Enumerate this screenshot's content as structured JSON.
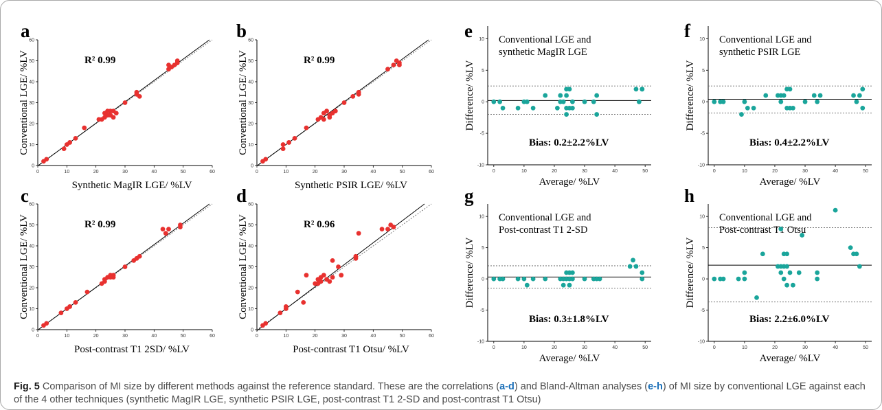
{
  "caption": {
    "label": "Fig. 5",
    "text_1": " Comparison of MI size by different methods against the reference standard. These are the correlations (",
    "ref_ad": "a-d",
    "text_2": ") and Bland-Altman analyses (",
    "ref_eh": "e-h",
    "text_3": ") of MI size by conventional LGE against each of the 4 other techniques (synthetic MagIR LGE, synthetic PSIR LGE, post-contrast T1 2-SD and post-contrast T1 Otsu)"
  },
  "colors": {
    "point_red": "#e8312f",
    "point_teal": "#1aa59b",
    "axis": "#000000"
  },
  "chart_data": [
    {
      "panel": "a",
      "type": "scatter",
      "xlabel": "Synthetic MagIR LGE/ %LV",
      "ylabel": "Conventional LGE/ %LV",
      "xlim": [
        0,
        60
      ],
      "ylim": [
        0,
        60
      ],
      "xticks": [
        0,
        10,
        20,
        30,
        40,
        50,
        60
      ],
      "yticks": [
        0,
        10,
        20,
        30,
        40,
        50,
        60
      ],
      "annotation": "R² 0.99",
      "fit_line": {
        "slope": 1.02,
        "intercept": -0.2
      },
      "identity_line": true,
      "points": [
        [
          2,
          2
        ],
        [
          3,
          3
        ],
        [
          9,
          8
        ],
        [
          10,
          10
        ],
        [
          11,
          11
        ],
        [
          13,
          13
        ],
        [
          16,
          18
        ],
        [
          21,
          22
        ],
        [
          22,
          22
        ],
        [
          23,
          23
        ],
        [
          23,
          25
        ],
        [
          24,
          26
        ],
        [
          24,
          24
        ],
        [
          25,
          24
        ],
        [
          25,
          26
        ],
        [
          26,
          26
        ],
        [
          26,
          23
        ],
        [
          27,
          25
        ],
        [
          30,
          30
        ],
        [
          34,
          34
        ],
        [
          34,
          35
        ],
        [
          35,
          33
        ],
        [
          45,
          46
        ],
        [
          45,
          48
        ],
        [
          46,
          47
        ],
        [
          47,
          48
        ],
        [
          48,
          49
        ],
        [
          48,
          50
        ]
      ]
    },
    {
      "panel": "b",
      "type": "scatter",
      "xlabel": "Synthetic PSIR LGE/ %LV",
      "ylabel": "Conventional LGE/ %LV",
      "xlim": [
        0,
        60
      ],
      "ylim": [
        0,
        60
      ],
      "xticks": [
        0,
        10,
        20,
        30,
        40,
        50,
        60
      ],
      "yticks": [
        0,
        10,
        20,
        30,
        40,
        50,
        60
      ],
      "annotation": "R² 0.99",
      "fit_line": {
        "slope": 1.02,
        "intercept": -0.2
      },
      "identity_line": true,
      "points": [
        [
          2,
          2
        ],
        [
          3,
          3
        ],
        [
          9,
          10
        ],
        [
          9,
          8
        ],
        [
          11,
          11
        ],
        [
          13,
          13
        ],
        [
          17,
          18
        ],
        [
          21,
          22
        ],
        [
          22,
          23
        ],
        [
          23,
          25
        ],
        [
          23,
          22
        ],
        [
          24,
          26
        ],
        [
          25,
          24
        ],
        [
          25,
          23
        ],
        [
          26,
          25
        ],
        [
          27,
          26
        ],
        [
          30,
          30
        ],
        [
          33,
          33
        ],
        [
          35,
          34
        ],
        [
          35,
          35
        ],
        [
          45,
          46
        ],
        [
          47,
          48
        ],
        [
          48,
          50
        ],
        [
          49,
          48
        ],
        [
          49,
          49
        ]
      ]
    },
    {
      "panel": "c",
      "type": "scatter",
      "xlabel": "Post-contrast T1 2SD/ %LV",
      "ylabel": "Conventional LGE/ %LV",
      "xlim": [
        0,
        60
      ],
      "ylim": [
        0,
        60
      ],
      "xticks": [
        0,
        10,
        20,
        30,
        40,
        50,
        60
      ],
      "yticks": [
        0,
        10,
        20,
        30,
        40,
        50,
        60
      ],
      "annotation": "R² 0.99",
      "fit_line": {
        "slope": 1.02,
        "intercept": -0.2
      },
      "identity_line": true,
      "points": [
        [
          2,
          2
        ],
        [
          3,
          3
        ],
        [
          8,
          8
        ],
        [
          10,
          10
        ],
        [
          11,
          11
        ],
        [
          13,
          13
        ],
        [
          17,
          18
        ],
        [
          22,
          22
        ],
        [
          23,
          23
        ],
        [
          23,
          24
        ],
        [
          24,
          25
        ],
        [
          25,
          26
        ],
        [
          25,
          25
        ],
        [
          26,
          26
        ],
        [
          26,
          25
        ],
        [
          30,
          30
        ],
        [
          33,
          33
        ],
        [
          34,
          34
        ],
        [
          35,
          35
        ],
        [
          43,
          48
        ],
        [
          44,
          46
        ],
        [
          45,
          48
        ],
        [
          49,
          49
        ],
        [
          49,
          50
        ]
      ]
    },
    {
      "panel": "d",
      "type": "scatter",
      "xlabel": "Post-contrast T1 Otsu/ %LV",
      "ylabel": "Conventional LGE/ %LV",
      "xlim": [
        0,
        60
      ],
      "ylim": [
        0,
        60
      ],
      "xticks": [
        0,
        10,
        20,
        30,
        40,
        50,
        60
      ],
      "yticks": [
        0,
        10,
        20,
        30,
        40,
        50,
        60
      ],
      "annotation": "R² 0.96",
      "fit_line": {
        "slope": 1.05,
        "intercept": -0.5
      },
      "identity_line": true,
      "points": [
        [
          2,
          2
        ],
        [
          3,
          3
        ],
        [
          8,
          8
        ],
        [
          10,
          10
        ],
        [
          10,
          11
        ],
        [
          14,
          18
        ],
        [
          16,
          13
        ],
        [
          17,
          26
        ],
        [
          20,
          22
        ],
        [
          21,
          24
        ],
        [
          21,
          22
        ],
        [
          22,
          25
        ],
        [
          22,
          23
        ],
        [
          23,
          26
        ],
        [
          24,
          24
        ],
        [
          25,
          23
        ],
        [
          26,
          33
        ],
        [
          26,
          25
        ],
        [
          28,
          30
        ],
        [
          29,
          26
        ],
        [
          34,
          34
        ],
        [
          34,
          35
        ],
        [
          35,
          46
        ],
        [
          43,
          48
        ],
        [
          45,
          48
        ],
        [
          46,
          50
        ],
        [
          47,
          49
        ]
      ]
    },
    {
      "panel": "e",
      "type": "scatter",
      "title": [
        "Conventional LGE and",
        "synthetic MagIR LGE"
      ],
      "xlabel": "Average/ %LV",
      "ylabel": "Difference/ %LV",
      "xlim": [
        -2,
        52
      ],
      "ylim": [
        -10,
        12
      ],
      "xticks": [
        0,
        10,
        20,
        30,
        40,
        50
      ],
      "yticks": [
        -10,
        -5,
        0,
        5,
        10
      ],
      "annotation": "Bias: 0.2±2.2%LV",
      "mean_line": 0.2,
      "loa": [
        -2.0,
        2.5
      ],
      "points": [
        [
          0,
          0
        ],
        [
          2,
          0
        ],
        [
          3,
          -1
        ],
        [
          8,
          -1
        ],
        [
          10,
          0
        ],
        [
          11,
          0
        ],
        [
          13,
          -1
        ],
        [
          17,
          1
        ],
        [
          21,
          -1
        ],
        [
          22,
          0
        ],
        [
          22,
          1
        ],
        [
          23,
          0
        ],
        [
          24,
          1
        ],
        [
          24,
          -1
        ],
        [
          24,
          2
        ],
        [
          24,
          -2
        ],
        [
          25,
          2
        ],
        [
          25,
          -1
        ],
        [
          26,
          0
        ],
        [
          26,
          -1
        ],
        [
          30,
          0
        ],
        [
          33,
          0
        ],
        [
          34,
          -2
        ],
        [
          34,
          1
        ],
        [
          47,
          2
        ],
        [
          48,
          0
        ],
        [
          49,
          2
        ],
        [
          49,
          2
        ]
      ]
    },
    {
      "panel": "f",
      "type": "scatter",
      "title": [
        "Conventional LGE and",
        "synthetic PSIR LGE"
      ],
      "xlabel": "Average/ %LV",
      "ylabel": "Difference/ %LV",
      "xlim": [
        -2,
        52
      ],
      "ylim": [
        -10,
        12
      ],
      "xticks": [
        0,
        10,
        20,
        30,
        40,
        50
      ],
      "yticks": [
        -10,
        -5,
        0,
        5,
        10
      ],
      "annotation": "Bias: 0.4±2.2%LV",
      "mean_line": 0.4,
      "loa": [
        -1.8,
        2.5
      ],
      "points": [
        [
          0,
          0
        ],
        [
          2,
          0
        ],
        [
          3,
          0
        ],
        [
          9,
          -2
        ],
        [
          10,
          0
        ],
        [
          11,
          -1
        ],
        [
          13,
          -1
        ],
        [
          17,
          1
        ],
        [
          21,
          1
        ],
        [
          22,
          0
        ],
        [
          22,
          1
        ],
        [
          23,
          1
        ],
        [
          24,
          -1
        ],
        [
          24,
          2
        ],
        [
          25,
          2
        ],
        [
          25,
          -1
        ],
        [
          26,
          -1
        ],
        [
          30,
          0
        ],
        [
          33,
          1
        ],
        [
          34,
          0
        ],
        [
          35,
          1
        ],
        [
          46,
          1
        ],
        [
          47,
          0
        ],
        [
          48,
          1
        ],
        [
          49,
          -1
        ],
        [
          49,
          2
        ]
      ]
    },
    {
      "panel": "g",
      "type": "scatter",
      "title": [
        "Conventional LGE and",
        "Post-contrast T1 2-SD"
      ],
      "xlabel": "Average/ %LV",
      "ylabel": "Difference/ %LV",
      "xlim": [
        -2,
        52
      ],
      "ylim": [
        -10,
        12
      ],
      "xticks": [
        0,
        10,
        20,
        30,
        40,
        50
      ],
      "yticks": [
        -10,
        -5,
        0,
        5,
        10
      ],
      "annotation": "Bias: 0.3±1.8%LV",
      "mean_line": 0.3,
      "loa": [
        -1.5,
        2.1
      ],
      "points": [
        [
          0,
          0
        ],
        [
          2,
          0
        ],
        [
          3,
          0
        ],
        [
          8,
          0
        ],
        [
          10,
          0
        ],
        [
          11,
          -1
        ],
        [
          13,
          0
        ],
        [
          17,
          0
        ],
        [
          22,
          0
        ],
        [
          23,
          0
        ],
        [
          23,
          -1
        ],
        [
          24,
          1
        ],
        [
          24,
          0
        ],
        [
          25,
          1
        ],
        [
          25,
          0
        ],
        [
          25,
          -1
        ],
        [
          26,
          0
        ],
        [
          26,
          1
        ],
        [
          30,
          0
        ],
        [
          33,
          0
        ],
        [
          34,
          0
        ],
        [
          35,
          0
        ],
        [
          45,
          2
        ],
        [
          46,
          3
        ],
        [
          47,
          2
        ],
        [
          49,
          0
        ],
        [
          49,
          1
        ]
      ]
    },
    {
      "panel": "h",
      "type": "scatter",
      "title": [
        "Conventional LGE and",
        "Post-contrast T1 Otsu"
      ],
      "xlabel": "Average/ %LV",
      "ylabel": "Difference/ %LV",
      "xlim": [
        -2,
        52
      ],
      "ylim": [
        -10,
        12
      ],
      "xticks": [
        0,
        10,
        20,
        30,
        40,
        50
      ],
      "yticks": [
        -10,
        -5,
        0,
        5,
        10
      ],
      "annotation": "Bias: 2.2±6.0%LV",
      "mean_line": 2.2,
      "loa": [
        -3.7,
        8.2
      ],
      "points": [
        [
          0,
          0
        ],
        [
          2,
          0
        ],
        [
          3,
          0
        ],
        [
          8,
          0
        ],
        [
          10,
          0
        ],
        [
          10,
          1
        ],
        [
          14,
          -3
        ],
        [
          16,
          4
        ],
        [
          21,
          2
        ],
        [
          22,
          1
        ],
        [
          22,
          2
        ],
        [
          22,
          8
        ],
        [
          23,
          4
        ],
        [
          23,
          2
        ],
        [
          23,
          0
        ],
        [
          24,
          4
        ],
        [
          24,
          -1
        ],
        [
          24,
          2
        ],
        [
          25,
          1
        ],
        [
          26,
          -1
        ],
        [
          28,
          1
        ],
        [
          29,
          7
        ],
        [
          34,
          0
        ],
        [
          34,
          1
        ],
        [
          40,
          11
        ],
        [
          45,
          5
        ],
        [
          46,
          4
        ],
        [
          47,
          4
        ],
        [
          48,
          2
        ]
      ]
    }
  ]
}
